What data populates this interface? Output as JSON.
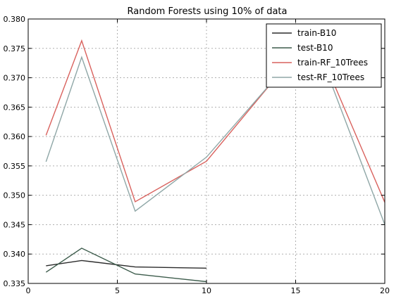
{
  "chart_data": {
    "type": "line",
    "title": "Random Forests using 10% of data",
    "xlabel": "",
    "ylabel": "",
    "xlim": [
      0,
      20
    ],
    "ylim": [
      0.335,
      0.38
    ],
    "xticks": [
      0,
      5,
      10,
      15,
      20
    ],
    "xtick_labels": [
      "0",
      "5",
      "10",
      "15",
      "20"
    ],
    "yticks": [
      0.335,
      0.34,
      0.345,
      0.35,
      0.355,
      0.36,
      0.365,
      0.37,
      0.375,
      0.38
    ],
    "ytick_labels": [
      "0.335",
      "0.340",
      "0.345",
      "0.350",
      "0.355",
      "0.360",
      "0.365",
      "0.370",
      "0.375",
      "0.380"
    ],
    "grid": true,
    "legend_position": "top-right",
    "series": [
      {
        "name": "train-B10",
        "color": "#2b2b2b",
        "x": [
          1,
          3,
          6,
          10
        ],
        "y": [
          0.338,
          0.3389,
          0.3378,
          0.3376
        ]
      },
      {
        "name": "test-B10",
        "color": "#3d5c4c",
        "x": [
          1,
          3,
          6,
          10
        ],
        "y": [
          0.3369,
          0.341,
          0.3366,
          0.3353
        ]
      },
      {
        "name": "train-RF_10Trees",
        "color": "#d9625e",
        "x": [
          1,
          3,
          6,
          10,
          14,
          17,
          20
        ],
        "y": [
          0.3602,
          0.3763,
          0.3489,
          0.3558,
          0.3704,
          0.37,
          0.3488
        ]
      },
      {
        "name": "test-RF_10Trees",
        "color": "#8fa7a7",
        "x": [
          1,
          3,
          6,
          10,
          14,
          17,
          20
        ],
        "y": [
          0.3557,
          0.3735,
          0.3473,
          0.3565,
          0.3704,
          0.369,
          0.345
        ]
      }
    ]
  }
}
